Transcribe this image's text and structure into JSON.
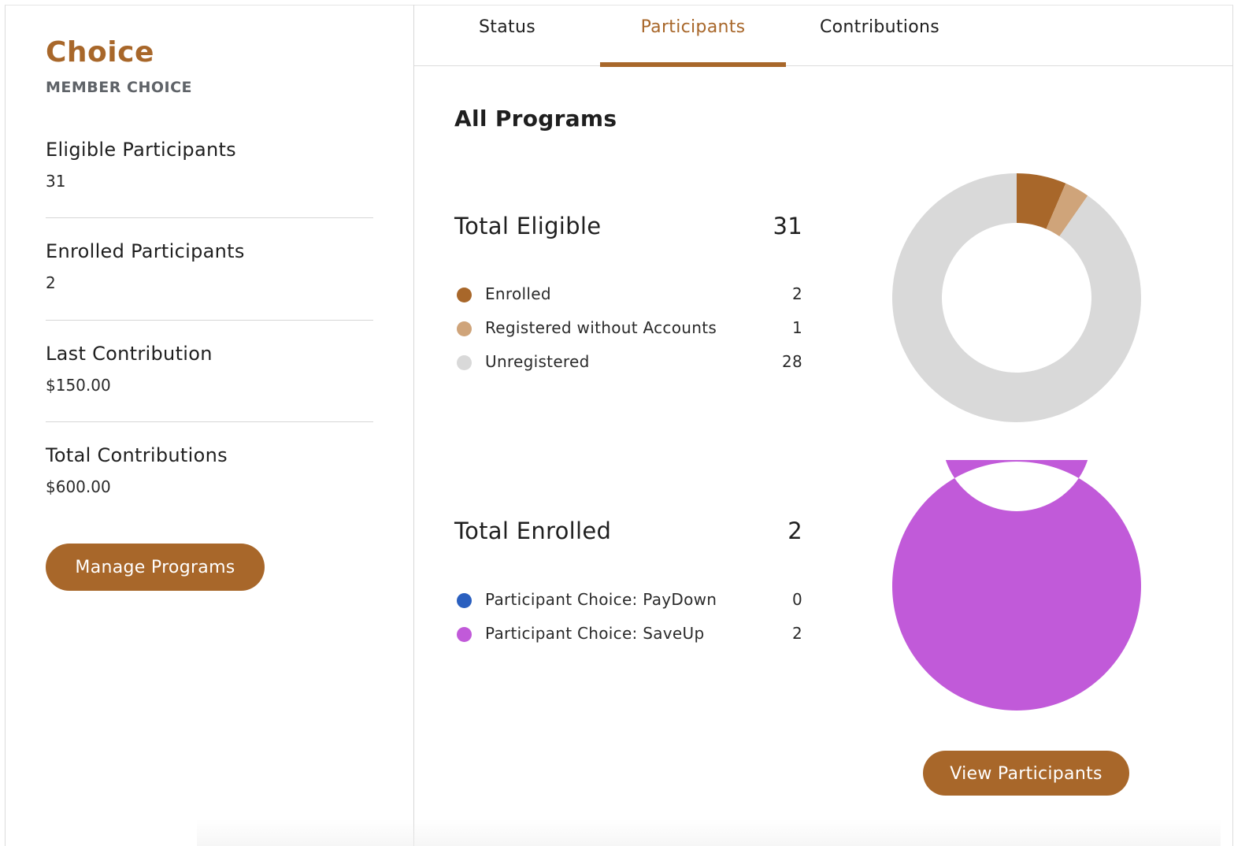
{
  "program": {
    "name": "Choice",
    "type": "MEMBER CHOICE"
  },
  "stats": [
    {
      "label": "Eligible Participants",
      "value": "31"
    },
    {
      "label": "Enrolled Participants",
      "value": "2"
    },
    {
      "label": "Last Contribution",
      "value": "$150.00"
    },
    {
      "label": "Total Contributions",
      "value": "$600.00"
    }
  ],
  "buttons": {
    "manage": "Manage Programs",
    "view_participants": "View Participants"
  },
  "tabs": [
    {
      "label": "Status",
      "active": false
    },
    {
      "label": "Participants",
      "active": true
    },
    {
      "label": "Contributions",
      "active": false
    }
  ],
  "section_title": "All Programs",
  "eligible": {
    "label": "Total Eligible",
    "total": "31",
    "items": [
      {
        "label": "Enrolled",
        "value": 2,
        "color": "#a8672a"
      },
      {
        "label": "Registered without Accounts",
        "value": 1,
        "color": "#cfa47a"
      },
      {
        "label": "Unregistered",
        "value": 28,
        "color": "#d9d9d9"
      }
    ]
  },
  "enrolled": {
    "label": "Total Enrolled",
    "total": "2",
    "items": [
      {
        "label": "Participant Choice: PayDown",
        "value": 0,
        "color": "#2a5fbf"
      },
      {
        "label": "Participant Choice: SaveUp",
        "value": 2,
        "color": "#c15ad9"
      }
    ]
  },
  "colors": {
    "accent": "#a8672a"
  }
}
